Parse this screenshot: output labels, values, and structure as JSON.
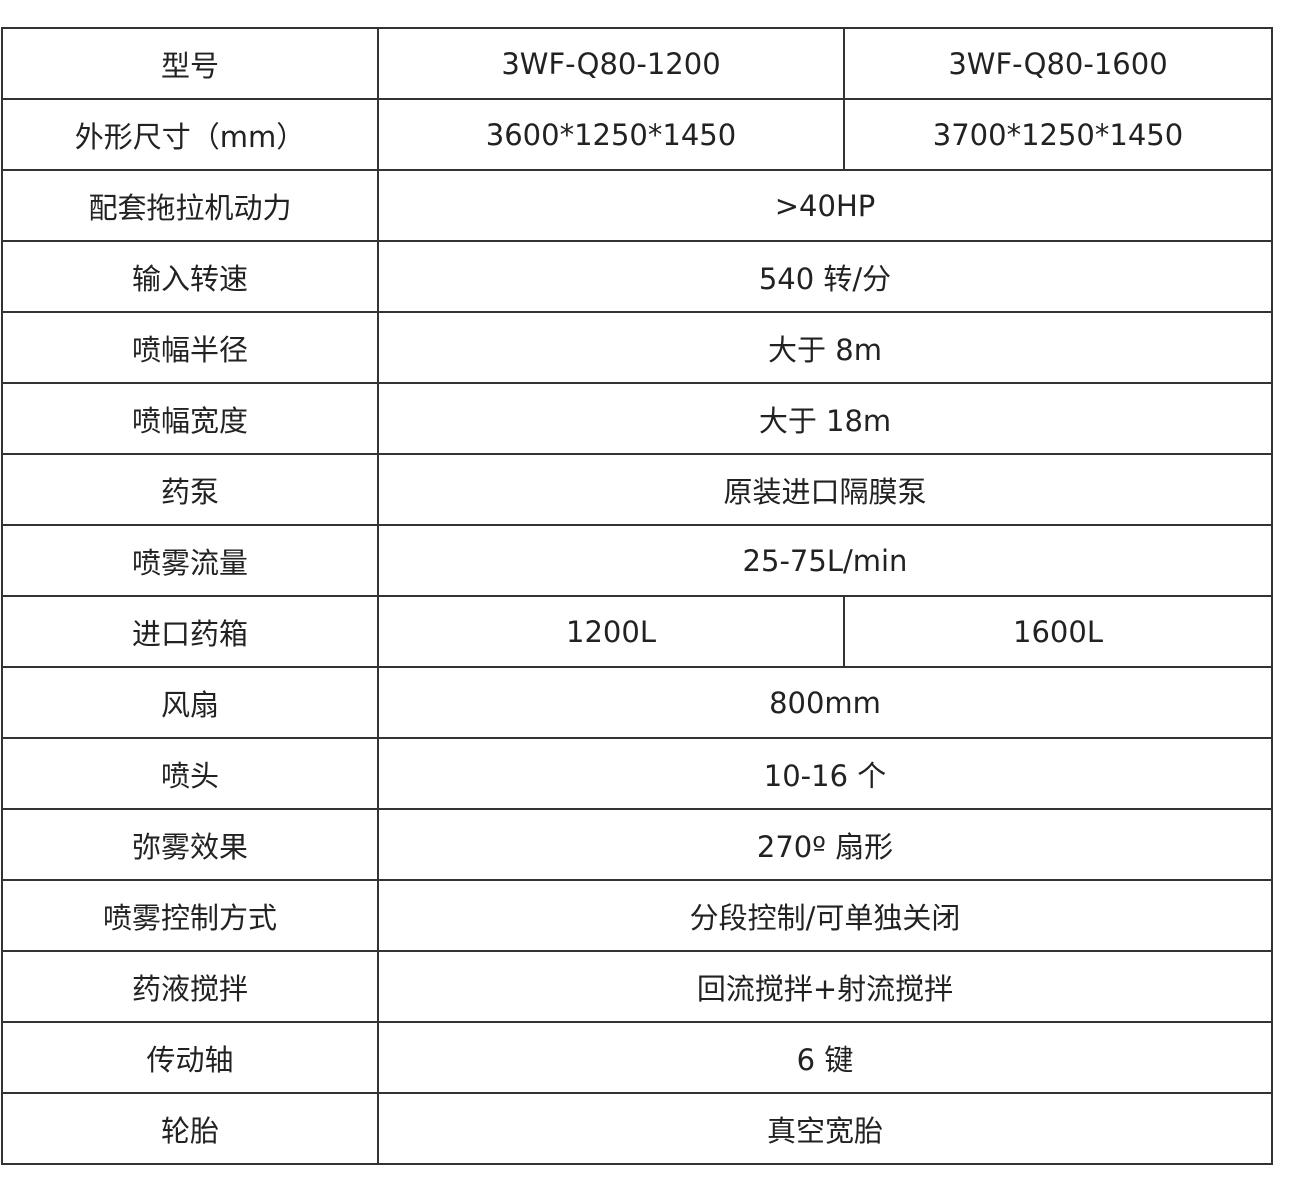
{
  "table": {
    "rows": [
      [
        "型号",
        "3WF-Q80-1200",
        "3WF-Q80-1600"
      ],
      [
        "外形尺寸（mm）",
        "3600*1250*1450",
        "3700*1250*1450"
      ],
      [
        "配套拖拉机动力",
        ">40HP"
      ],
      [
        "输入转速",
        "540 转/分"
      ],
      [
        "喷幅半径",
        "大于 8m"
      ],
      [
        "喷幅宽度",
        "大于 18m"
      ],
      [
        "药泵",
        "原装进口隔膜泵"
      ],
      [
        "喷雾流量",
        "25-75L/min"
      ],
      [
        "进口药箱",
        "1200L",
        "1600L"
      ],
      [
        "风扇",
        "800mm"
      ],
      [
        "喷头",
        "10-16 个"
      ],
      [
        "弥雾效果",
        "270º 扇形"
      ],
      [
        "喷雾控制方式",
        "分段控制/可单独关闭"
      ],
      [
        "药液搅拌",
        "回流搅拌+射流搅拌"
      ],
      [
        "传动轴",
        "6 键"
      ],
      [
        "轮胎",
        "真空宽胎"
      ]
    ]
  }
}
